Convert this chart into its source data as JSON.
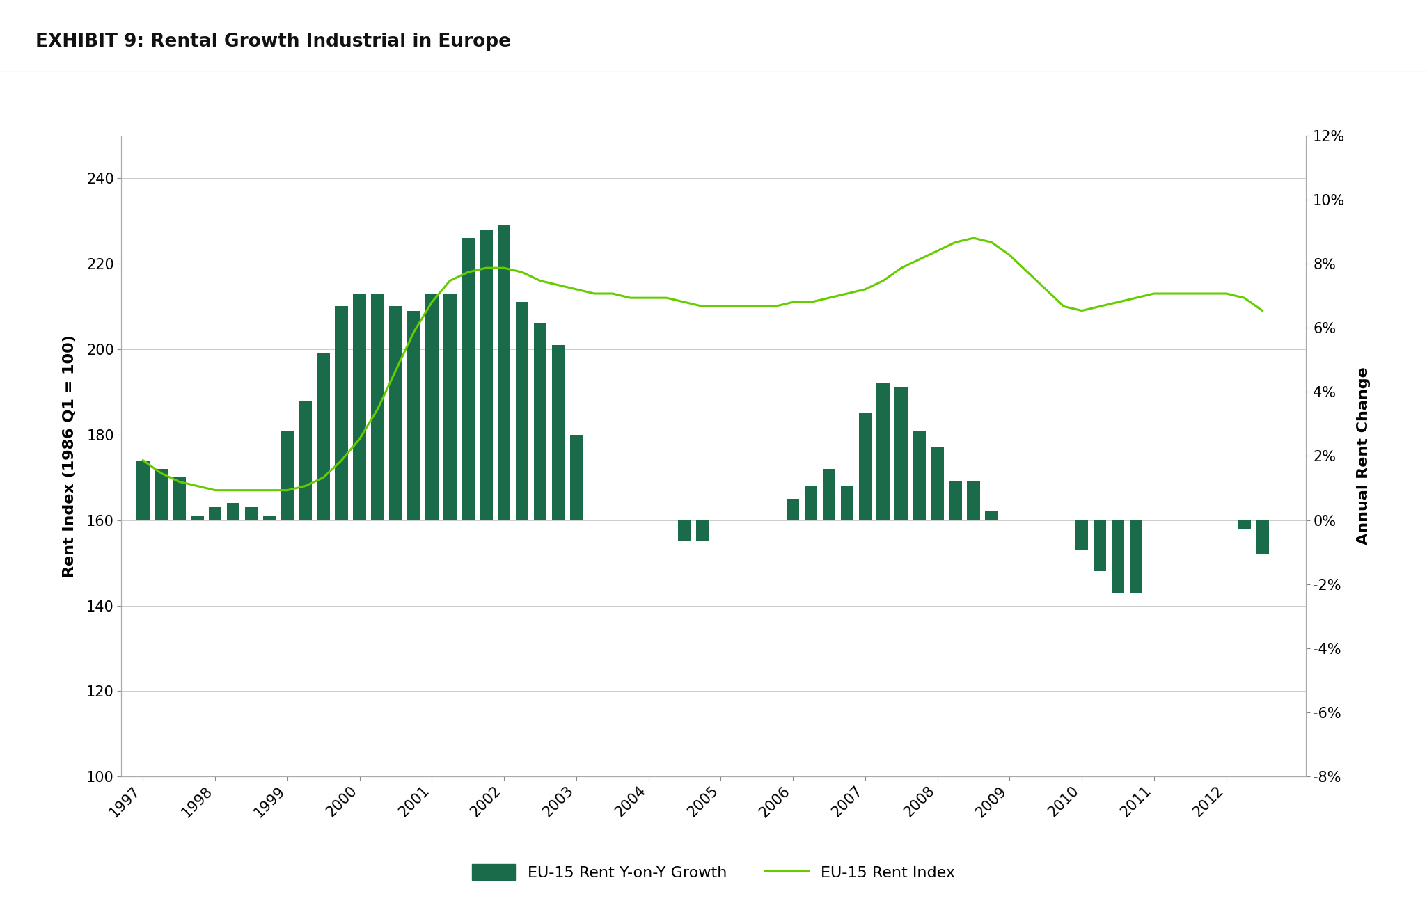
{
  "title": "EXHIBIT 9: Rental Growth Industrial in Europe",
  "title_bg_color": "#c8c8c8",
  "ylabel_left": "Rent Index (1986 Q1 = 100)",
  "ylabel_right": "Annual Rent Change",
  "ylim_left": [
    100,
    250
  ],
  "ylim_right": [
    -0.08,
    0.12
  ],
  "yticks_left": [
    100,
    120,
    140,
    160,
    180,
    200,
    220,
    240
  ],
  "yticks_right_pct": [
    -8,
    -6,
    -4,
    -2,
    0,
    2,
    4,
    6,
    8,
    10,
    12
  ],
  "bar_color": "#1a6b4a",
  "line_color": "#66cc00",
  "bar_zero": 160,
  "bar_data": {
    "x": [
      1997.0,
      1997.25,
      1997.5,
      1997.75,
      1998.0,
      1998.25,
      1998.5,
      1998.75,
      1999.0,
      1999.25,
      1999.5,
      1999.75,
      2000.0,
      2000.25,
      2000.5,
      2000.75,
      2001.0,
      2001.25,
      2001.5,
      2001.75,
      2002.0,
      2002.25,
      2002.5,
      2002.75,
      2003.0,
      2003.25,
      2003.5,
      2003.75,
      2004.0,
      2004.25,
      2004.5,
      2004.75,
      2005.0,
      2005.25,
      2005.5,
      2005.75,
      2006.0,
      2006.25,
      2006.5,
      2006.75,
      2007.0,
      2007.25,
      2007.5,
      2007.75,
      2008.0,
      2008.25,
      2008.5,
      2008.75,
      2009.0,
      2009.25,
      2009.5,
      2009.75,
      2010.0,
      2010.25,
      2010.5,
      2010.75,
      2011.0,
      2011.25,
      2011.5,
      2011.75,
      2012.0,
      2012.25,
      2012.5
    ],
    "y": [
      174,
      172,
      170,
      161,
      163,
      164,
      163,
      161,
      181,
      188,
      199,
      210,
      213,
      213,
      210,
      209,
      213,
      213,
      226,
      228,
      229,
      211,
      206,
      201,
      180,
      160,
      160,
      160,
      160,
      160,
      155,
      155,
      160,
      160,
      160,
      160,
      165,
      168,
      172,
      168,
      185,
      192,
      191,
      181,
      177,
      169,
      169,
      162,
      160,
      160,
      160,
      160,
      153,
      148,
      143,
      143,
      160,
      160,
      160,
      160,
      160,
      158,
      152
    ]
  },
  "line_data": {
    "x": [
      1997.0,
      1997.25,
      1997.5,
      1997.75,
      1998.0,
      1998.25,
      1998.5,
      1998.75,
      1999.0,
      1999.25,
      1999.5,
      1999.75,
      2000.0,
      2000.25,
      2000.5,
      2000.75,
      2001.0,
      2001.25,
      2001.5,
      2001.75,
      2002.0,
      2002.25,
      2002.5,
      2002.75,
      2003.0,
      2003.25,
      2003.5,
      2003.75,
      2004.0,
      2004.25,
      2004.5,
      2004.75,
      2005.0,
      2005.25,
      2005.5,
      2005.75,
      2006.0,
      2006.25,
      2006.5,
      2006.75,
      2007.0,
      2007.25,
      2007.5,
      2007.75,
      2008.0,
      2008.25,
      2008.5,
      2008.75,
      2009.0,
      2009.25,
      2009.5,
      2009.75,
      2010.0,
      2010.25,
      2010.5,
      2010.75,
      2011.0,
      2011.25,
      2011.5,
      2011.75,
      2012.0,
      2012.25,
      2012.5
    ],
    "y": [
      174,
      171,
      169,
      168,
      167,
      167,
      167,
      167,
      167,
      168,
      170,
      174,
      179,
      186,
      195,
      204,
      211,
      216,
      218,
      219,
      219,
      218,
      216,
      215,
      214,
      213,
      213,
      212,
      212,
      212,
      211,
      210,
      210,
      210,
      210,
      210,
      211,
      211,
      212,
      213,
      214,
      216,
      219,
      221,
      223,
      225,
      226,
      225,
      222,
      218,
      214,
      210,
      209,
      210,
      211,
      212,
      213,
      213,
      213,
      213,
      213,
      212,
      209
    ]
  },
  "xticks": [
    1997,
    1998,
    1999,
    2000,
    2001,
    2002,
    2003,
    2004,
    2005,
    2006,
    2007,
    2008,
    2009,
    2010,
    2011,
    2012
  ],
  "legend_bar_label": "EU-15 Rent Y-on-Y Growth",
  "legend_line_label": "EU-15 Rent Index",
  "bg_color": "#ffffff",
  "plot_bg_color": "#ffffff"
}
